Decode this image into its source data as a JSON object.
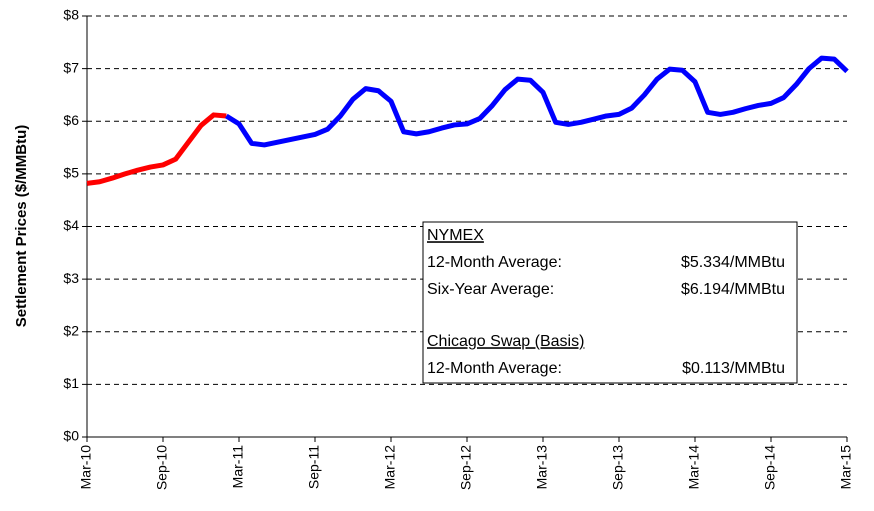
{
  "chart_data": {
    "type": "line",
    "ylabel": "Settlement Prices ($/MMBtu)",
    "categories": [
      "Mar-10",
      null,
      null,
      null,
      null,
      null,
      "Sep-10",
      null,
      null,
      null,
      null,
      null,
      "Mar-11",
      null,
      null,
      null,
      null,
      null,
      "Sep-11",
      null,
      null,
      null,
      null,
      null,
      "Mar-12",
      null,
      null,
      null,
      null,
      null,
      "Sep-12",
      null,
      null,
      null,
      null,
      null,
      "Mar-13",
      null,
      null,
      null,
      null,
      null,
      "Sep-13",
      null,
      null,
      null,
      null,
      null,
      "Mar-14",
      null,
      null,
      null,
      null,
      null,
      "Sep-14",
      null,
      null,
      null,
      null,
      null,
      "Mar-15"
    ],
    "series": [
      {
        "color": "#ff0000",
        "values": [
          4.82,
          4.85,
          4.92,
          5.0,
          5.07,
          5.13,
          5.17,
          5.28,
          5.6,
          5.92,
          6.12,
          6.1,
          null,
          null,
          null,
          null,
          null,
          null,
          null,
          null,
          null,
          null,
          null,
          null,
          null,
          null,
          null,
          null,
          null,
          null,
          null,
          null,
          null,
          null,
          null,
          null,
          null,
          null,
          null,
          null,
          null,
          null,
          null,
          null,
          null,
          null,
          null,
          null,
          null,
          null,
          null,
          null,
          null,
          null,
          null,
          null,
          null,
          null,
          null,
          null,
          null
        ]
      },
      {
        "color": "#0000ff",
        "values": [
          null,
          null,
          null,
          null,
          null,
          null,
          null,
          null,
          null,
          null,
          null,
          6.1,
          5.95,
          5.58,
          5.55,
          5.6,
          5.65,
          5.7,
          5.75,
          5.85,
          6.1,
          6.42,
          6.62,
          6.58,
          6.38,
          5.8,
          5.76,
          5.8,
          5.87,
          5.93,
          5.95,
          6.05,
          6.3,
          6.6,
          6.8,
          6.78,
          6.55,
          5.98,
          5.94,
          5.98,
          6.04,
          6.1,
          6.13,
          6.25,
          6.5,
          6.8,
          6.99,
          6.97,
          6.75,
          6.17,
          6.13,
          6.17,
          6.24,
          6.3,
          6.34,
          6.45,
          6.7,
          7.0,
          7.2,
          7.18,
          6.95
        ]
      }
    ],
    "ylim": [
      0,
      8
    ],
    "yticks": [
      {
        "value": 0,
        "label": "$0"
      },
      {
        "value": 1,
        "label": "$1"
      },
      {
        "value": 2,
        "label": "$2"
      },
      {
        "value": 3,
        "label": "$3"
      },
      {
        "value": 4,
        "label": "$4"
      },
      {
        "value": 5,
        "label": "$5"
      },
      {
        "value": 6,
        "label": "$6"
      },
      {
        "value": 7,
        "label": "$7"
      },
      {
        "value": 8,
        "label": "$8"
      }
    ],
    "grid": true,
    "annotations": [
      {
        "heading": "NYMEX",
        "rows": [
          {
            "label": "12-Month Average:",
            "value": "$5.334/MMBtu"
          },
          {
            "label": "Six-Year Average:",
            "value": "$6.194/MMBtu"
          }
        ]
      },
      {
        "heading": "Chicago Swap (Basis)",
        "rows": [
          {
            "label": "12-Month Average:",
            "value": "$0.113/MMBtu"
          }
        ]
      }
    ]
  }
}
